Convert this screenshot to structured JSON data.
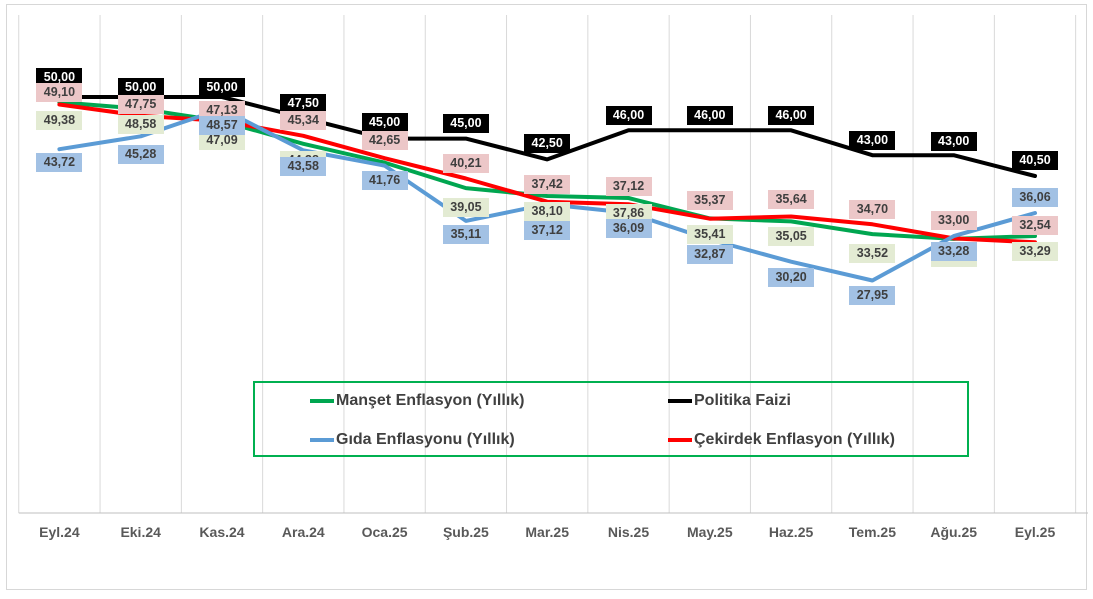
{
  "chart_data": {
    "type": "line",
    "categories": [
      "Eyl.24",
      "Eki.24",
      "Kas.24",
      "Ara.24",
      "Oca.25",
      "Şub.25",
      "Mar.25",
      "Nis.25",
      "May.25",
      "Haz.25",
      "Tem.25",
      "Ağu.25",
      "Eyl.25"
    ],
    "series": [
      {
        "id": "manset",
        "name": "Manşet Enflasyon (Yıllık)",
        "color": "#00A650",
        "label_bg": "#E3EBD3",
        "label_text": "#3F3F3F",
        "values": [
          49.38,
          48.58,
          47.09,
          44.38,
          42.12,
          39.05,
          38.1,
          37.86,
          35.41,
          35.05,
          33.52,
          32.95,
          33.29
        ],
        "labels": [
          "49,38",
          "48,58",
          "47,09",
          "44,38",
          null,
          "39,05",
          "38,10",
          "37,86",
          "35,41",
          "35,05",
          "33,52",
          "",
          "33,29"
        ]
      },
      {
        "id": "gida",
        "name": "Gıda Enflasyonu (Yıllık)",
        "color": "#5B9BD5",
        "label_bg": "#A2C1E4",
        "label_text": "#3F3F3F",
        "values": [
          43.72,
          45.28,
          48.57,
          43.58,
          41.76,
          35.11,
          37.12,
          36.09,
          32.87,
          30.2,
          27.95,
          33.28,
          36.06
        ],
        "labels": [
          "43,72",
          "45,28",
          "48,57",
          "43,58",
          "41,76",
          "35,11",
          "37,12",
          "36,09",
          "32,87",
          "30,20",
          "27,95",
          "33,28",
          "36,06"
        ]
      },
      {
        "id": "politika",
        "name": "Politika Faizi",
        "color": "#000000",
        "label_bg": "#000000",
        "label_text": "#FFFFFF",
        "values": [
          50.0,
          50.0,
          50.0,
          47.5,
          45.0,
          45.0,
          42.5,
          46.0,
          46.0,
          46.0,
          43.0,
          43.0,
          40.5
        ],
        "labels": [
          "50,00",
          "50,00",
          "50,00",
          "47,50",
          "45,00",
          "45,00",
          "42,50",
          "46,00",
          "46,00",
          "46,00",
          "43,00",
          "43,00",
          "40,50"
        ]
      },
      {
        "id": "cekirdek",
        "name": "Çekirdek Enflasyon (Yıllık)",
        "color": "#FF0000",
        "label_bg": "#ECC7C8",
        "label_text": "#3F3F3F",
        "values": [
          49.1,
          47.75,
          47.13,
          45.34,
          42.65,
          40.21,
          37.42,
          37.12,
          35.37,
          35.64,
          34.7,
          33.0,
          32.54
        ],
        "labels": [
          "49,10",
          "47,75",
          "47,13",
          "45,34",
          "42,65",
          "40,21",
          "37,42",
          "37,12",
          "35,37",
          "35,64",
          "34,70",
          "33,00",
          "32,54"
        ]
      }
    ],
    "ylim": [
      0,
      60
    ],
    "grid": "vertical-only",
    "y_axis_visible": false,
    "legend_position": "bottom-center-box",
    "grid_color": "#D9D9D9",
    "axis_line_color": "#BFBFBF"
  },
  "legend": {
    "border_color": "#00B050",
    "items": [
      {
        "label": "Manşet Enflasyon (Yıllık)",
        "color": "#00A650"
      },
      {
        "label": "Politika Faizi",
        "color": "#000000"
      },
      {
        "label": "Gıda Enflasyonu (Yıllık)",
        "color": "#5B9BD5"
      },
      {
        "label": "Çekirdek Enflasyon (Yıllık)",
        "color": "#FF0000"
      }
    ]
  }
}
